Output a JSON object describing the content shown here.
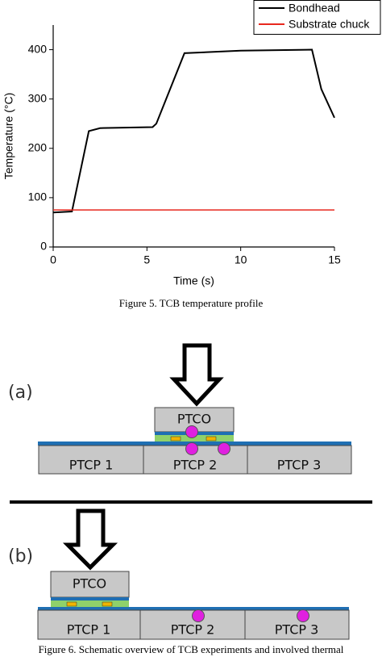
{
  "chart_data": {
    "type": "line",
    "x_label": "Time (s)",
    "y_label": "Temperature (°C)",
    "xlim": [
      0,
      15
    ],
    "xticks": [
      0,
      5,
      10,
      15
    ],
    "ylim": [
      0,
      450
    ],
    "yticks": [
      0,
      100,
      200,
      300,
      400
    ],
    "legend": "top-right",
    "series": [
      {
        "name": "Bondhead",
        "color": "#000000",
        "x": [
          0,
          1,
          1.9,
          2.5,
          5.3,
          5.5,
          7,
          10,
          13.8,
          14.3,
          15
        ],
        "values": [
          70,
          72,
          235,
          241,
          243,
          250,
          393,
          398,
          400,
          320,
          262
        ]
      },
      {
        "name": "Substrate chuck",
        "color": "#e8281e",
        "x": [
          0,
          15
        ],
        "values": [
          75,
          75
        ]
      }
    ]
  },
  "figure5_caption": "Figure 5.    TCB temperature profile",
  "diagram": {
    "panels": [
      {
        "label": "(a)",
        "die": "PTCO",
        "substrates": [
          "PTCP 1",
          "PTCP 2",
          "PTCP 3"
        ]
      },
      {
        "label": "(b)",
        "die": "PTCO",
        "substrates": [
          "PTCP 1",
          "PTCP 2",
          "PTCP 3"
        ]
      }
    ]
  },
  "figure6_caption": "Figure 6.    Schematic overview of TCB experiments and involved thermal"
}
